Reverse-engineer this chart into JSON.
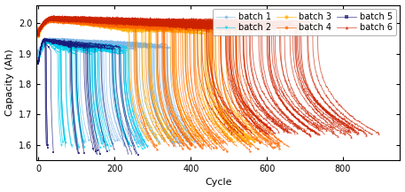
{
  "xlabel": "Cycle",
  "ylabel": "Capacity (Ah)",
  "xlim": [
    -5,
    950
  ],
  "ylim": [
    1.55,
    2.06
  ],
  "yticks": [
    1.6,
    1.7,
    1.8,
    1.9,
    2.0
  ],
  "xticks": [
    0,
    200,
    400,
    600,
    800
  ],
  "background": "#f8f8f8",
  "batches": [
    {
      "name": "batch 1",
      "color": "#7eb6e8",
      "marker": "o",
      "n_cells": 46,
      "max_cycle": 430,
      "min_cycle": 120,
      "peak_cycle": 30,
      "peak_val": 1.945,
      "start_val": 1.905,
      "plateau_val": 1.925,
      "end_val": 1.61,
      "spread": 0.012,
      "knee_sharpness": 3.5
    },
    {
      "name": "batch 2",
      "color": "#00ccee",
      "marker": "v",
      "n_cells": 40,
      "max_cycle": 290,
      "min_cycle": 60,
      "peak_cycle": 25,
      "peak_val": 1.94,
      "start_val": 1.88,
      "plateau_val": 1.91,
      "end_val": 1.6,
      "spread": 0.018,
      "knee_sharpness": 3.0
    },
    {
      "name": "batch 3",
      "color": "#ffaa00",
      "marker": "D",
      "n_cells": 48,
      "max_cycle": 610,
      "min_cycle": 280,
      "peak_cycle": 35,
      "peak_val": 2.015,
      "start_val": 1.965,
      "plateau_val": 1.98,
      "end_val": 1.62,
      "spread": 0.016,
      "knee_sharpness": 4.0
    },
    {
      "name": "batch 4",
      "color": "#ff6600",
      "marker": "o",
      "n_cells": 48,
      "max_cycle": 660,
      "min_cycle": 300,
      "peak_cycle": 35,
      "peak_val": 2.01,
      "start_val": 1.975,
      "plateau_val": 1.99,
      "end_val": 1.6,
      "spread": 0.018,
      "knee_sharpness": 4.0
    },
    {
      "name": "batch 5",
      "color": "#1a1a7a",
      "marker": "s",
      "n_cells": 20,
      "max_cycle": 285,
      "min_cycle": 20,
      "peak_cycle": 15,
      "peak_val": 1.945,
      "start_val": 1.87,
      "plateau_val": 1.92,
      "end_val": 1.57,
      "spread": 0.01,
      "knee_sharpness": 2.5
    },
    {
      "name": "batch 6",
      "color": "#cc2200",
      "marker": "^",
      "n_cells": 52,
      "max_cycle": 900,
      "min_cycle": 500,
      "peak_cycle": 35,
      "peak_val": 2.015,
      "start_val": 1.97,
      "plateau_val": 1.99,
      "end_val": 1.65,
      "spread": 0.018,
      "knee_sharpness": 3.5
    }
  ],
  "legend": {
    "ncol": 3,
    "fontsize": 7,
    "loc": "upper right"
  }
}
